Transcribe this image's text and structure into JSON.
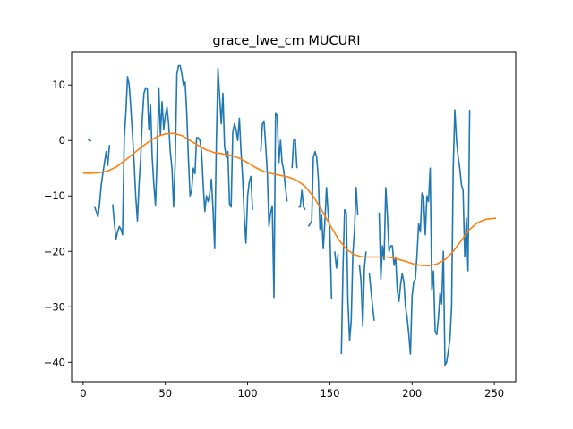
{
  "chart_data": {
    "type": "line",
    "title": "grace_lwe_cm MUCURI",
    "xlabel": "",
    "ylabel": "",
    "xlim": [
      -7,
      263
    ],
    "ylim": [
      -43.5,
      16
    ],
    "xticks": [
      0,
      50,
      100,
      150,
      200,
      250
    ],
    "yticks": [
      -40,
      -30,
      -20,
      -10,
      0,
      10
    ],
    "xtick_labels": [
      "0",
      "50",
      "100",
      "150",
      "200",
      "250"
    ],
    "ytick_labels": [
      "−40",
      "−30",
      "−20",
      "−10",
      "0",
      "10"
    ],
    "grid": false,
    "legend": "none",
    "series": [
      {
        "color": "#1f77b4",
        "segments": [
          [
            [
              3,
              0.2
            ],
            [
              4,
              0.0
            ],
            [
              5,
              -0.1
            ]
          ],
          [
            [
              7,
              -12.0
            ],
            [
              8,
              -12.8
            ],
            [
              9,
              -13.8
            ],
            [
              10,
              -11.5
            ],
            [
              11,
              -8.0
            ],
            [
              12,
              -6.0
            ],
            [
              13,
              -4.0
            ],
            [
              14,
              -2.0
            ],
            [
              15,
              -4.5
            ],
            [
              16,
              -0.8
            ]
          ],
          [
            [
              18,
              -11.5
            ],
            [
              19,
              -15.0
            ],
            [
              20,
              -17.8
            ],
            [
              21,
              -16.5
            ],
            [
              22,
              -15.5
            ],
            [
              23,
              -16.0
            ],
            [
              24,
              -17.0
            ],
            [
              25,
              0.5
            ],
            [
              26,
              5.0
            ],
            [
              27,
              11.5
            ],
            [
              28,
              10.0
            ],
            [
              29,
              6.0
            ],
            [
              30,
              1.0
            ],
            [
              31,
              -4.0
            ],
            [
              32,
              -10.0
            ],
            [
              33,
              -14.5
            ],
            [
              34,
              -8.0
            ],
            [
              35,
              -3.0
            ],
            [
              36,
              4.0
            ],
            [
              37,
              8.5
            ],
            [
              38,
              9.5
            ],
            [
              39,
              9.3
            ],
            [
              40,
              2.0
            ],
            [
              41,
              6.5
            ],
            [
              42,
              -3.0
            ],
            [
              43,
              -8.0
            ],
            [
              44,
              -11.7
            ],
            [
              45,
              -3.0
            ],
            [
              46,
              9.5
            ],
            [
              47,
              1.0
            ],
            [
              48,
              7.0
            ],
            [
              49,
              2.0
            ],
            [
              50,
              4.5
            ],
            [
              51,
              6.0
            ],
            [
              52,
              3.0
            ],
            [
              53,
              -2.0
            ],
            [
              54,
              -5.0
            ],
            [
              55,
              -12.0
            ],
            [
              56,
              -4.0
            ],
            [
              57,
              12.0
            ],
            [
              58,
              13.5
            ],
            [
              59,
              13.5
            ],
            [
              60,
              12.0
            ],
            [
              61,
              10.0
            ],
            [
              62,
              10.5
            ],
            [
              63,
              5.0
            ],
            [
              64,
              -3.0
            ],
            [
              65,
              -10.0
            ],
            [
              66,
              -9.0
            ],
            [
              67,
              -5.0
            ],
            [
              68,
              -6.0
            ],
            [
              69,
              0.5
            ],
            [
              70,
              0.5
            ],
            [
              71,
              0.0
            ],
            [
              72,
              -2.0
            ],
            [
              73,
              -8.0
            ],
            [
              74,
              -12.8
            ],
            [
              75,
              -10.0
            ],
            [
              76,
              -11.0
            ],
            [
              77,
              -9.5
            ],
            [
              78,
              -7.0
            ],
            [
              79,
              -12.5
            ],
            [
              80,
              -19.5
            ],
            [
              81,
              0.0
            ],
            [
              82,
              13.0
            ],
            [
              83,
              8.0
            ],
            [
              84,
              3.0
            ],
            [
              85,
              8.5
            ],
            [
              86,
              -1.0
            ],
            [
              87,
              -3.0
            ],
            [
              88,
              -2.0
            ],
            [
              89,
              -11.5
            ],
            [
              90,
              -12.0
            ],
            [
              91,
              1.5
            ],
            [
              92,
              3.0
            ],
            [
              93,
              2.0
            ],
            [
              94,
              0.0
            ],
            [
              95,
              4.0
            ],
            [
              96,
              -2.0
            ],
            [
              97,
              -7.0
            ],
            [
              98,
              -14.0
            ],
            [
              99,
              -18.5
            ],
            [
              100,
              -10.0
            ],
            [
              101,
              -7.5
            ],
            [
              102,
              -6.5
            ],
            [
              103,
              -12.5
            ]
          ],
          [
            [
              108,
              -2.0
            ],
            [
              109,
              3.0
            ],
            [
              110,
              3.5
            ],
            [
              111,
              -1.0
            ],
            [
              112,
              -6.0
            ],
            [
              113,
              -15.5
            ],
            [
              114,
              -13.0
            ],
            [
              115,
              -11.8
            ],
            [
              116,
              -28.3
            ],
            [
              117,
              5.0
            ],
            [
              118,
              4.5
            ],
            [
              119,
              -4.0
            ],
            [
              120,
              0.0
            ],
            [
              121,
              -4.0
            ],
            [
              122,
              -5.5
            ],
            [
              123,
              -8.5
            ],
            [
              124,
              -11.0
            ]
          ],
          [
            [
              127,
              -5.0
            ],
            [
              128,
              0.0
            ],
            [
              129,
              0.3
            ],
            [
              130,
              -5.0
            ]
          ],
          [
            [
              131,
              -12.0
            ],
            [
              132,
              -12.0
            ],
            [
              133,
              -9.0
            ],
            [
              134,
              -12.0
            ],
            [
              135,
              -12.5
            ]
          ],
          [
            [
              137,
              -15.5
            ],
            [
              138,
              -15.0
            ],
            [
              139,
              -14.5
            ],
            [
              140,
              -3.0
            ],
            [
              141,
              -2.0
            ],
            [
              142,
              -3.0
            ],
            [
              143,
              -7.0
            ],
            [
              144,
              -16.0
            ],
            [
              145,
              -13.5
            ],
            [
              146,
              -19.5
            ],
            [
              147,
              -14.5
            ],
            [
              148,
              -8.5
            ],
            [
              149,
              -13.5
            ],
            [
              150,
              -16.0
            ],
            [
              151,
              -28.5
            ]
          ],
          [
            [
              153,
              -20.0
            ],
            [
              154,
              -23.0
            ],
            [
              155,
              -20.5
            ]
          ],
          [
            [
              157,
              -38.5
            ],
            [
              158,
              -23.0
            ],
            [
              159,
              -12.5
            ],
            [
              160,
              -13.0
            ],
            [
              161,
              -29.0
            ],
            [
              162,
              -36.0
            ],
            [
              163,
              -32.5
            ],
            [
              164,
              -20.5
            ],
            [
              165,
              -16.0
            ],
            [
              166,
              -8.5
            ],
            [
              167,
              -13.5
            ]
          ],
          [
            [
              168,
              -22.5
            ],
            [
              169,
              -25.5
            ],
            [
              170,
              -33.5
            ],
            [
              171,
              -23.0
            ],
            [
              172,
              -20.0
            ]
          ],
          [
            [
              174,
              -24.0
            ],
            [
              175,
              -27.0
            ],
            [
              176,
              -30.0
            ],
            [
              177,
              -32.5
            ]
          ],
          [
            [
              180,
              -13.0
            ],
            [
              181,
              -25.0
            ],
            [
              182,
              -19.0
            ],
            [
              183,
              -21.5
            ],
            [
              184,
              -8.5
            ],
            [
              185,
              -13.5
            ],
            [
              186,
              -20.0
            ],
            [
              187,
              -19.0
            ],
            [
              188,
              -19.0
            ],
            [
              189,
              -22.5
            ],
            [
              190,
              -21.0
            ],
            [
              191,
              -27.0
            ],
            [
              192,
              -29.0
            ],
            [
              193,
              -26.0
            ],
            [
              194,
              -24.0
            ],
            [
              195,
              -25.5
            ],
            [
              196,
              -30.0
            ],
            [
              197,
              -32.0
            ],
            [
              198,
              -35.0
            ],
            [
              199,
              -38.5
            ],
            [
              200,
              -28.0
            ],
            [
              201,
              -25.5
            ],
            [
              202,
              -25.0
            ],
            [
              203,
              -20.5
            ],
            [
              204,
              -15.0
            ],
            [
              205,
              -16.5
            ],
            [
              206,
              -9.5
            ],
            [
              207,
              -10.0
            ],
            [
              208,
              -17.0
            ],
            [
              209,
              -10.0
            ],
            [
              210,
              -11.0
            ],
            [
              211,
              -5.0
            ],
            [
              212,
              -27.0
            ],
            [
              213,
              -23.5
            ],
            [
              214,
              -34.5
            ],
            [
              215,
              -35.0
            ],
            [
              216,
              -32.0
            ],
            [
              217,
              -27.5
            ],
            [
              218,
              -29.5
            ],
            [
              219,
              -20.0
            ],
            [
              220,
              -40.5
            ],
            [
              221,
              -40.0
            ],
            [
              222,
              -38.0
            ],
            [
              223,
              -36.0
            ],
            [
              224,
              -30.0
            ],
            [
              225,
              -5.0
            ],
            [
              226,
              5.5
            ],
            [
              227,
              0.0
            ],
            [
              228,
              -3.0
            ],
            [
              229,
              -5.0
            ],
            [
              230,
              -8.0
            ],
            [
              231,
              -9.0
            ],
            [
              232,
              -21.0
            ],
            [
              233,
              -14.0
            ],
            [
              234,
              -23.5
            ],
            [
              235,
              5.5
            ]
          ]
        ]
      },
      {
        "color": "#ff7f0e",
        "points": [
          [
            0,
            -5.9
          ],
          [
            5,
            -5.9
          ],
          [
            10,
            -5.8
          ],
          [
            15,
            -5.5
          ],
          [
            20,
            -4.8
          ],
          [
            25,
            -3.7
          ],
          [
            30,
            -2.5
          ],
          [
            35,
            -1.3
          ],
          [
            40,
            -0.2
          ],
          [
            45,
            0.7
          ],
          [
            50,
            1.2
          ],
          [
            55,
            1.3
          ],
          [
            60,
            0.9
          ],
          [
            65,
            0.0
          ],
          [
            70,
            -0.9
          ],
          [
            75,
            -1.7
          ],
          [
            80,
            -2.2
          ],
          [
            85,
            -2.4
          ],
          [
            90,
            -2.7
          ],
          [
            95,
            -3.2
          ],
          [
            100,
            -4.0
          ],
          [
            105,
            -4.9
          ],
          [
            110,
            -5.6
          ],
          [
            115,
            -6.0
          ],
          [
            120,
            -6.3
          ],
          [
            125,
            -6.6
          ],
          [
            130,
            -7.2
          ],
          [
            135,
            -8.3
          ],
          [
            140,
            -10.1
          ],
          [
            145,
            -12.5
          ],
          [
            150,
            -15.2
          ],
          [
            155,
            -17.7
          ],
          [
            160,
            -19.6
          ],
          [
            165,
            -20.6
          ],
          [
            170,
            -21.0
          ],
          [
            175,
            -21.0
          ],
          [
            180,
            -21.0
          ],
          [
            185,
            -21.0
          ],
          [
            190,
            -21.3
          ],
          [
            195,
            -21.7
          ],
          [
            200,
            -22.2
          ],
          [
            205,
            -22.5
          ],
          [
            210,
            -22.6
          ],
          [
            215,
            -22.3
          ],
          [
            220,
            -21.5
          ],
          [
            225,
            -20.0
          ],
          [
            230,
            -18.0
          ],
          [
            235,
            -16.0
          ],
          [
            240,
            -14.8
          ],
          [
            245,
            -14.2
          ],
          [
            251,
            -14.0
          ]
        ]
      }
    ]
  }
}
